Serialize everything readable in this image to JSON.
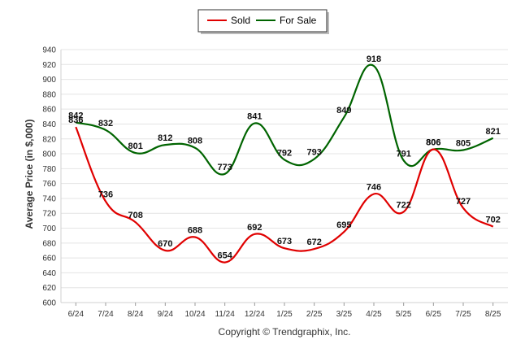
{
  "chart_data": {
    "type": "line",
    "title": "",
    "xlabel": "",
    "ylabel": "Average Price (in $,000)",
    "ylim": [
      600,
      940
    ],
    "ytick_step": 20,
    "grid": "horizontal",
    "legend_position": "top-center",
    "categories": [
      "6/24",
      "7/24",
      "8/24",
      "9/24",
      "10/24",
      "11/24",
      "12/24",
      "1/25",
      "2/25",
      "3/25",
      "4/25",
      "5/25",
      "6/25",
      "7/25",
      "8/25"
    ],
    "series": [
      {
        "name": "Sold",
        "color": "#e00000",
        "values": [
          836,
          736,
          708,
          670,
          688,
          654,
          692,
          673,
          672,
          695,
          746,
          722,
          806,
          727,
          702
        ]
      },
      {
        "name": "For Sale",
        "color": "#006400",
        "values": [
          842,
          832,
          801,
          812,
          808,
          773,
          841,
          792,
          793,
          849,
          918,
          791,
          806,
          805,
          821
        ]
      }
    ],
    "footer": "Copyright © Trendgraphix, Inc."
  }
}
